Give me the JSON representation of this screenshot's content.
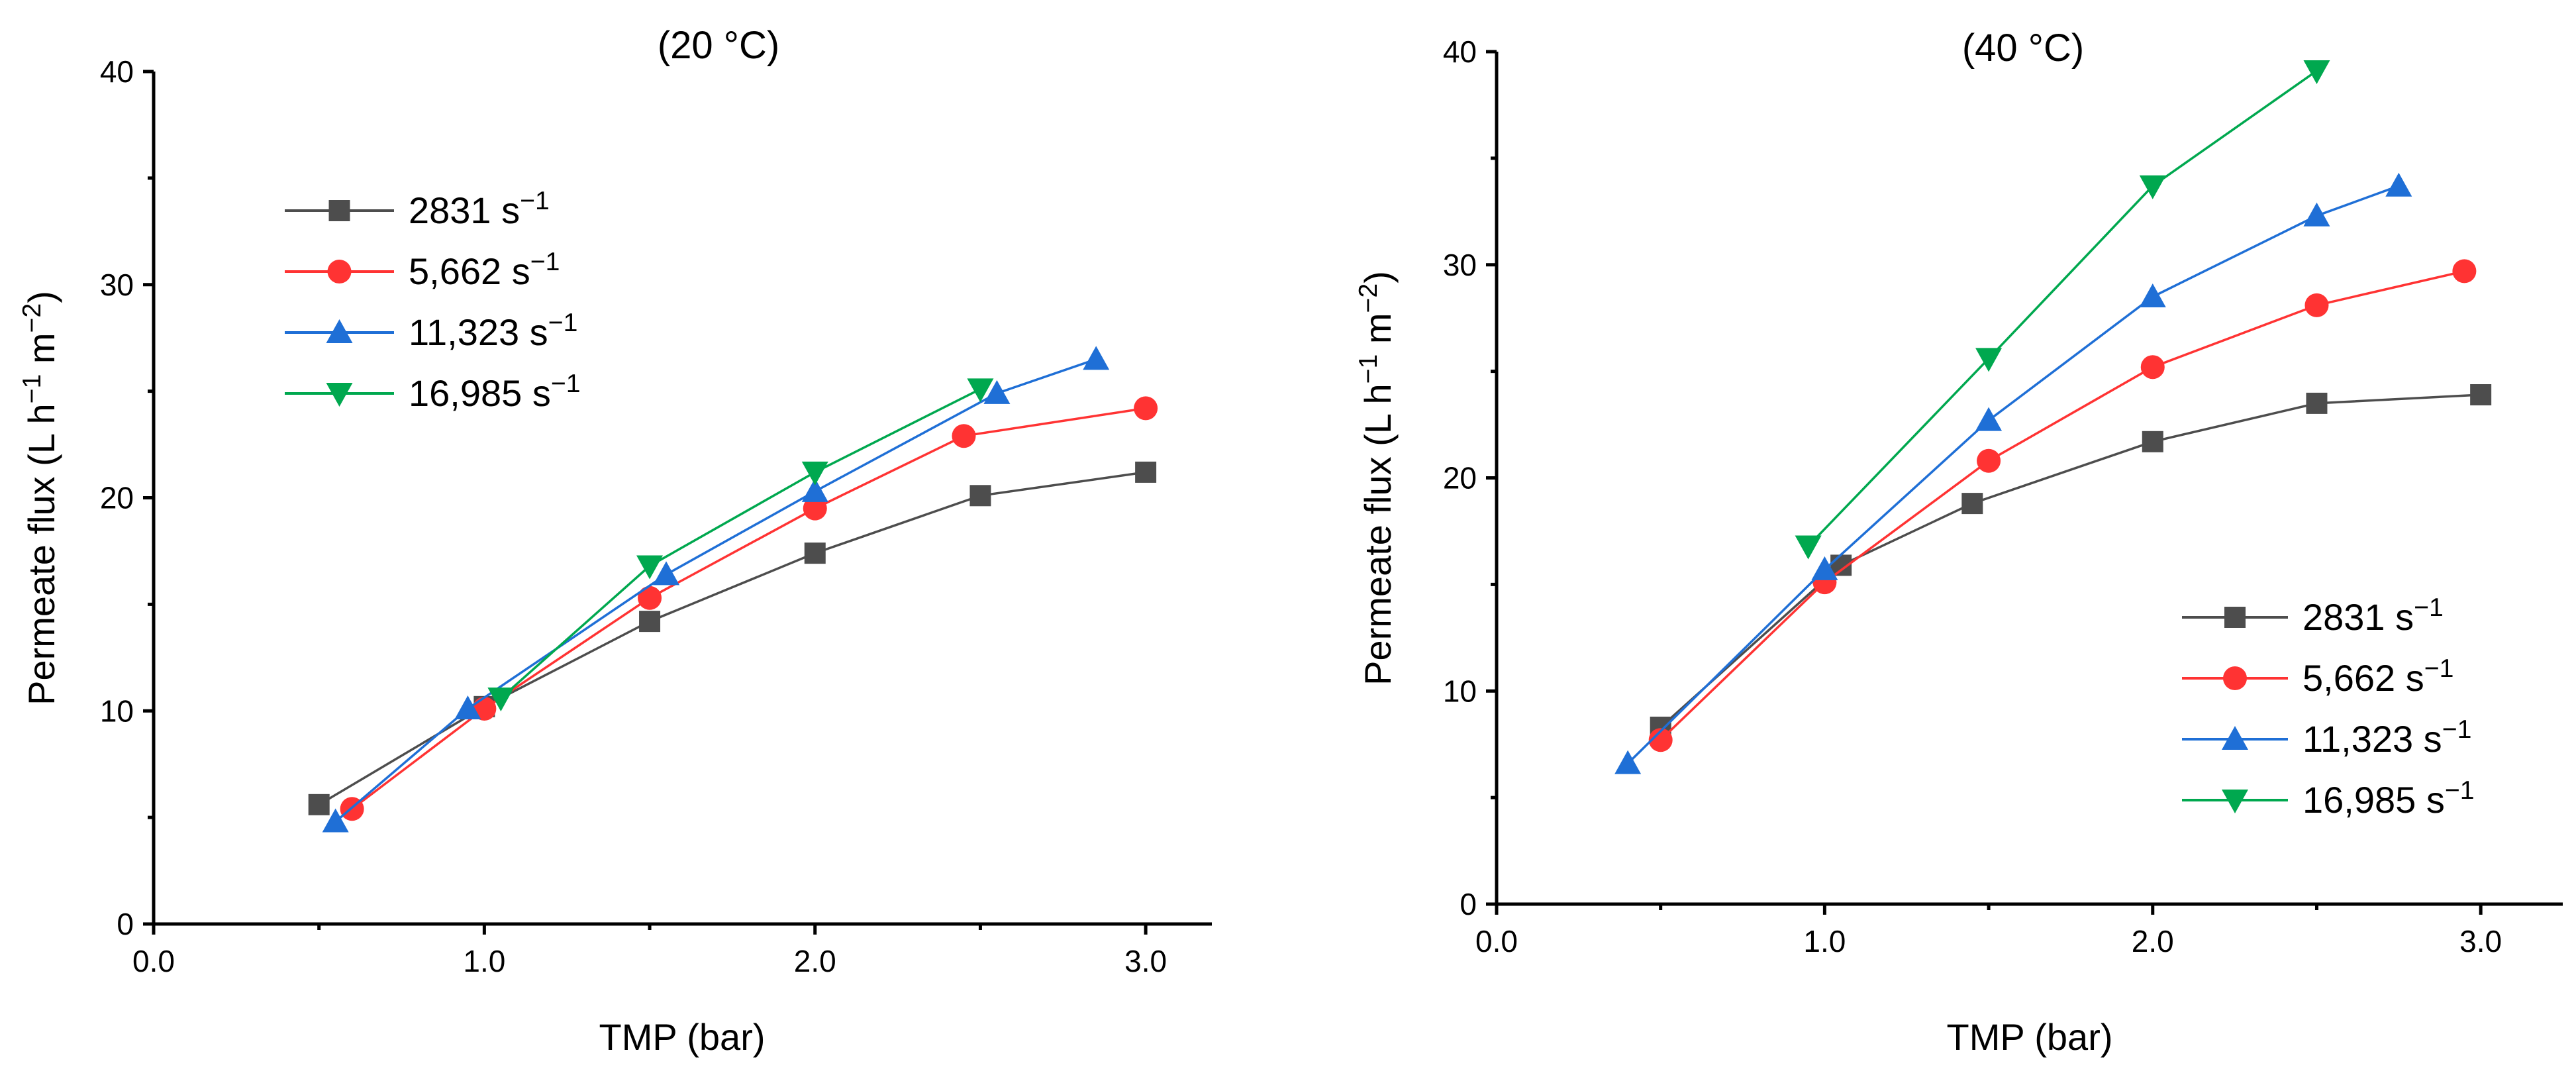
{
  "chart_data": [
    {
      "type": "line",
      "title": "(20 °C)",
      "xlabel": "TMP (bar)",
      "ylabel": "Permeate flux (L h⁻¹ m⁻²)",
      "xlim": [
        0,
        3.2
      ],
      "ylim": [
        0,
        40
      ],
      "x_ticks": [
        "0.0",
        "1.0",
        "2.0",
        "3.0"
      ],
      "y_ticks": [
        "0",
        "10",
        "20",
        "30",
        "40"
      ],
      "legend_position": "upper-left",
      "series": [
        {
          "name": "2831 s⁻¹",
          "color": "#4d4d4d",
          "marker": "square",
          "x": [
            0.5,
            1.0,
            1.5,
            2.0,
            2.5,
            3.0
          ],
          "y": [
            5.6,
            10.2,
            14.2,
            17.4,
            20.1,
            21.2
          ]
        },
        {
          "name": "5,662 s⁻¹",
          "color": "#ff3333",
          "marker": "circle",
          "x": [
            0.6,
            1.0,
            1.5,
            2.0,
            2.45,
            3.0
          ],
          "y": [
            5.4,
            10.1,
            15.3,
            19.5,
            22.9,
            24.2
          ]
        },
        {
          "name": "11,323 s⁻¹",
          "color": "#1f6fd6",
          "marker": "triangle-up",
          "x": [
            0.55,
            0.95,
            1.55,
            2.0,
            2.55,
            2.85
          ],
          "y": [
            4.8,
            10.1,
            16.4,
            20.3,
            24.9,
            26.5
          ]
        },
        {
          "name": "16,985 s⁻¹",
          "color": "#00a84f",
          "marker": "triangle-down",
          "x": [
            1.05,
            1.5,
            2.0,
            2.5
          ],
          "y": [
            10.6,
            16.8,
            21.2,
            25.1
          ]
        }
      ]
    },
    {
      "type": "line",
      "title": "(40 °C)",
      "xlabel": "TMP (bar)",
      "ylabel": "Permeate flux (L h⁻¹ m⁻²)",
      "xlim": [
        0,
        3.25
      ],
      "ylim": [
        0,
        40
      ],
      "x_ticks": [
        "0.0",
        "1.0",
        "2.0",
        "3.0"
      ],
      "y_ticks": [
        "0",
        "10",
        "20",
        "30",
        "40"
      ],
      "legend_position": "lower-right",
      "series": [
        {
          "name": "2831 s⁻¹",
          "color": "#4d4d4d",
          "marker": "square",
          "x": [
            0.5,
            1.05,
            1.45,
            2.0,
            2.5,
            3.0
          ],
          "y": [
            8.3,
            15.9,
            18.8,
            21.7,
            23.5,
            23.9
          ]
        },
        {
          "name": "5,662 s⁻¹",
          "color": "#ff3333",
          "marker": "circle",
          "x": [
            0.5,
            1.0,
            1.5,
            2.0,
            2.5,
            2.95
          ],
          "y": [
            7.7,
            15.1,
            20.8,
            25.2,
            28.1,
            29.7
          ]
        },
        {
          "name": "11,323 s⁻¹",
          "color": "#1f6fd6",
          "marker": "triangle-up",
          "x": [
            0.4,
            1.0,
            1.5,
            2.0,
            2.5,
            2.75
          ],
          "y": [
            6.6,
            15.7,
            22.7,
            28.5,
            32.3,
            33.7
          ]
        },
        {
          "name": "16,985 s⁻¹",
          "color": "#00a84f",
          "marker": "triangle-down",
          "x": [
            0.95,
            1.5,
            2.0,
            2.5
          ],
          "y": [
            16.8,
            25.6,
            33.7,
            39.1
          ]
        }
      ]
    }
  ]
}
